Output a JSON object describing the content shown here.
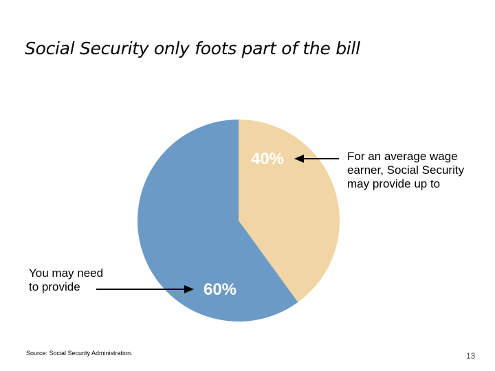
{
  "slide": {
    "title": "Social Security only foots part of the bill",
    "source": "Source: Social Security Administration.",
    "page_number": "13"
  },
  "annotations": {
    "social_security_lines": [
      "For an average wage",
      "earner, Social Security",
      "may provide up to"
    ],
    "you_lines": [
      "You may need",
      "to provide"
    ]
  },
  "colors": {
    "social_security_slice": "#F1D5A5",
    "you_slice": "#6B9AC7",
    "label_text": "#ffffff",
    "arrow": "#000000"
  },
  "chart_data": {
    "type": "pie",
    "start_angle": "12 o'clock, clockwise",
    "slices": [
      {
        "label": "40%",
        "value": 40
      },
      {
        "label": "60%",
        "value": 60
      }
    ]
  }
}
